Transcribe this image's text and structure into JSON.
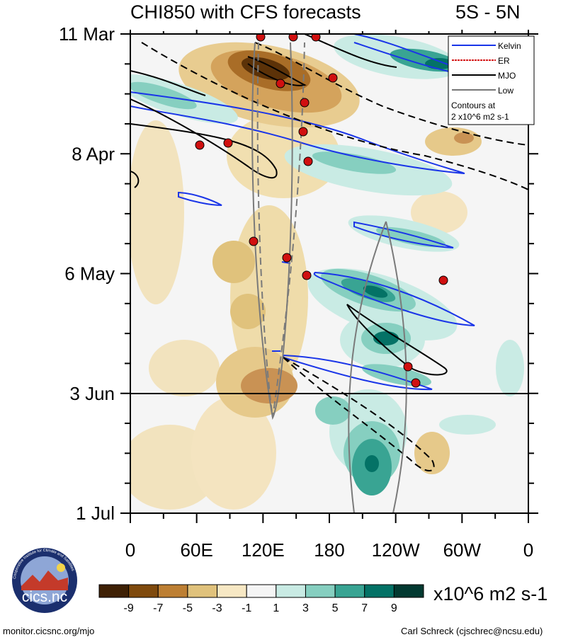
{
  "chart_data": {
    "type": "heatmap",
    "title": "CHI850 with CFS forecasts",
    "region": "5S - 5N",
    "x_ticks": [
      "0",
      "60E",
      "120E",
      "180",
      "120W",
      "60W",
      "0"
    ],
    "y_ticks": [
      "11 Mar",
      "8 Apr",
      "6 May",
      "3 Jun",
      "1 Jul"
    ],
    "forecast_start_line": "3 Jun",
    "colorbar": {
      "labels": [
        "-9",
        "-7",
        "-5",
        "-3",
        "-1",
        "1",
        "3",
        "5",
        "7",
        "9"
      ],
      "colors": [
        "#3f2105",
        "#7f4a0d",
        "#bd7f33",
        "#e0c27c",
        "#f7e8c4",
        "#f5f5f5",
        "#c9ebe4",
        "#86cfc0",
        "#39a493",
        "#047266",
        "#033a31"
      ],
      "units": "x10^6 m2 s-1"
    },
    "legend": {
      "items": [
        {
          "label": "Kelvin",
          "color": "#1a35e8"
        },
        {
          "label": "ER",
          "color": "#d41a1a"
        },
        {
          "label": "MJO",
          "color": "#000000"
        },
        {
          "label": "Low",
          "color": "#777777"
        }
      ],
      "note_line1": "Contours at",
      "note_line2": "2 x10^6 m2 s-1"
    }
  },
  "logo": {
    "text": "cics.nc",
    "ring_text": "Cooperative Institute for Climate and Satellites"
  },
  "footer": {
    "left": "monitor.cicsnc.org/mjo",
    "right": "Carl Schreck (cjschrec@ncsu.edu)"
  }
}
